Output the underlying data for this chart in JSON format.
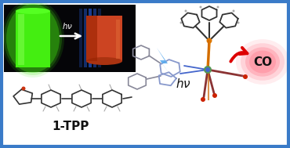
{
  "background_color": "#ffffff",
  "border_color": "#3a7bc8",
  "border_width": 3,
  "hv_lightning_color": "#5aaaee",
  "co_glow_color": "#ff8899",
  "co_text": "CO",
  "one_tpp_text": "1-TPP",
  "arrow_curve_color": "#dd0000",
  "photo_bg": "#050508",
  "green_flask_color": "#44ee11",
  "red_flask_color": "#cc4422",
  "blue_glow": "#2255cc",
  "mol_gray": "#666666",
  "mol_dark": "#333333",
  "mol_light": "#aaaaaa",
  "red_co": "#cc2200",
  "orange_p": "#dd7700",
  "blue_n": "#4466cc",
  "green_re": "#559955"
}
